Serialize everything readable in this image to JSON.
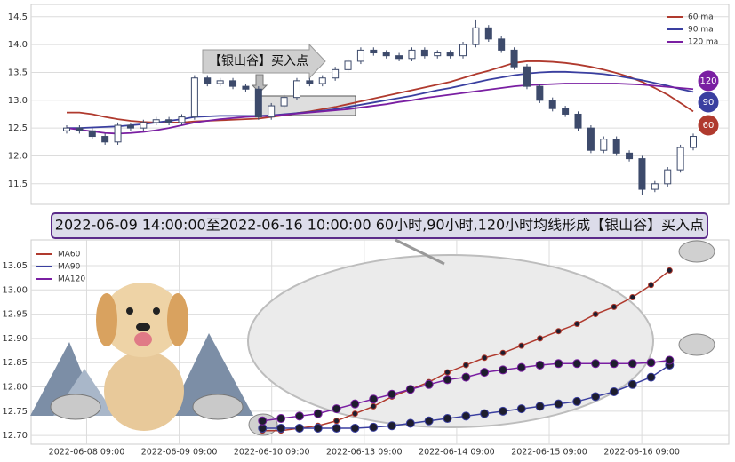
{
  "chart_data": [
    {
      "type": "candlestick",
      "annotation": "【银山谷】买入点",
      "end_labels": [
        "120",
        "90",
        "60"
      ],
      "open": [
        12.45,
        12.5,
        12.45,
        12.35,
        12.25,
        12.55,
        12.5,
        12.6,
        12.65,
        12.6,
        12.7,
        13.4,
        13.3,
        13.35,
        13.25,
        13.2,
        12.7,
        12.9,
        13.05,
        13.35,
        13.3,
        13.4,
        13.55,
        13.7,
        13.9,
        13.85,
        13.8,
        13.75,
        13.9,
        13.8,
        13.85,
        13.8,
        14.0,
        14.3,
        14.1,
        13.9,
        13.6,
        13.25,
        13.0,
        12.85,
        12.75,
        12.5,
        12.1,
        12.3,
        12.05,
        11.95,
        11.4,
        11.5,
        11.75,
        12.15
      ],
      "close": [
        12.5,
        12.45,
        12.35,
        12.25,
        12.55,
        12.5,
        12.6,
        12.65,
        12.6,
        12.7,
        13.4,
        13.3,
        13.35,
        13.25,
        13.2,
        12.7,
        12.9,
        13.05,
        13.35,
        13.3,
        13.4,
        13.55,
        13.7,
        13.9,
        13.85,
        13.8,
        13.75,
        13.9,
        13.8,
        13.85,
        13.8,
        14.0,
        14.3,
        14.1,
        13.9,
        13.6,
        13.25,
        13.0,
        12.85,
        12.75,
        12.5,
        12.1,
        12.3,
        12.05,
        11.95,
        11.4,
        11.5,
        11.75,
        12.15,
        12.35
      ],
      "high": [
        12.55,
        12.55,
        12.5,
        12.4,
        12.6,
        12.6,
        12.65,
        12.7,
        12.7,
        12.75,
        13.45,
        13.45,
        13.4,
        13.4,
        13.3,
        13.25,
        12.95,
        13.1,
        13.4,
        13.4,
        13.45,
        13.6,
        13.75,
        13.95,
        13.95,
        13.9,
        13.85,
        13.95,
        13.95,
        13.9,
        13.9,
        14.05,
        14.45,
        14.35,
        14.15,
        13.95,
        13.65,
        13.3,
        13.05,
        12.9,
        12.8,
        12.55,
        12.35,
        12.35,
        12.1,
        12.0,
        11.55,
        11.8,
        12.2,
        12.4
      ],
      "low": [
        12.4,
        12.4,
        12.3,
        12.2,
        12.2,
        12.45,
        12.45,
        12.55,
        12.55,
        12.55,
        12.65,
        13.25,
        13.25,
        13.2,
        13.15,
        12.65,
        12.65,
        12.85,
        13.0,
        13.25,
        13.25,
        13.35,
        13.5,
        13.65,
        13.8,
        13.75,
        13.7,
        13.7,
        13.75,
        13.75,
        13.75,
        13.75,
        13.95,
        14.05,
        13.85,
        13.55,
        13.2,
        12.95,
        12.8,
        12.7,
        12.45,
        12.05,
        12.05,
        12.0,
        11.9,
        11.3,
        11.35,
        11.45,
        11.7,
        12.1
      ],
      "candle_color": "#3d4a6b",
      "series": [
        {
          "name": "60 ma",
          "color": "#b03a2e",
          "values": [
            12.78,
            12.78,
            12.75,
            12.7,
            12.66,
            12.63,
            12.61,
            12.6,
            12.6,
            12.6,
            12.62,
            12.63,
            12.64,
            12.65,
            12.66,
            12.67,
            12.7,
            12.73,
            12.77,
            12.8,
            12.84,
            12.88,
            12.93,
            12.98,
            13.03,
            13.08,
            13.13,
            13.18,
            13.23,
            13.28,
            13.33,
            13.4,
            13.47,
            13.53,
            13.6,
            13.67,
            13.7,
            13.7,
            13.69,
            13.67,
            13.64,
            13.6,
            13.55,
            13.49,
            13.42,
            13.33,
            13.22,
            13.1,
            12.95,
            12.8
          ]
        },
        {
          "name": "90 ma",
          "color": "#3a3fa0",
          "values": [
            12.5,
            12.5,
            12.51,
            12.52,
            12.53,
            12.55,
            12.57,
            12.6,
            12.63,
            12.66,
            12.7,
            12.71,
            12.72,
            12.72,
            12.72,
            12.72,
            12.73,
            12.75,
            12.77,
            12.79,
            12.81,
            12.84,
            12.88,
            12.92,
            12.96,
            13.0,
            13.04,
            13.08,
            13.13,
            13.18,
            13.22,
            13.27,
            13.32,
            13.37,
            13.41,
            13.45,
            13.48,
            13.5,
            13.51,
            13.51,
            13.5,
            13.49,
            13.47,
            13.44,
            13.4,
            13.36,
            13.31,
            13.26,
            13.2,
            13.15
          ]
        },
        {
          "name": "120 ma",
          "color": "#7a1fa2",
          "values": [
            12.5,
            12.47,
            12.44,
            12.41,
            12.4,
            12.41,
            12.43,
            12.46,
            12.5,
            12.55,
            12.6,
            12.63,
            12.66,
            12.68,
            12.7,
            12.71,
            12.72,
            12.74,
            12.76,
            12.78,
            12.8,
            12.82,
            12.84,
            12.87,
            12.9,
            12.93,
            12.97,
            13.0,
            13.04,
            13.07,
            13.1,
            13.13,
            13.16,
            13.19,
            13.22,
            13.25,
            13.27,
            13.28,
            13.29,
            13.3,
            13.3,
            13.3,
            13.3,
            13.3,
            13.29,
            13.28,
            13.26,
            13.24,
            13.22,
            13.2
          ]
        }
      ],
      "ylim": [
        11.13,
        14.72
      ],
      "yticks": [
        11.5,
        {
          "value": 12,
          "label": "12.0"
        },
        12.5,
        {
          "value": 13,
          "label": "13.0"
        },
        13.5,
        {
          "value": 14,
          "label": "14.0"
        },
        14.5
      ],
      "grid": true,
      "legend": "upper right"
    },
    {
      "type": "line",
      "title": "2022-06-09 14:00:00至2022-06-16 10:00:00 60小时,90小时,120小时均线形成【银山谷】买入点",
      "x": [
        12.5,
        13.5,
        14.5,
        15.5,
        16.5,
        17.5,
        18.5,
        19.5,
        20.5,
        21.5,
        22.5,
        23.5,
        24.5,
        25.5,
        26.5,
        27.5,
        28.5,
        29.5,
        30.5,
        31.5,
        32.5,
        33.5,
        34.5
      ],
      "series": [
        {
          "name": "MA60",
          "color": "#b03a2e",
          "values": [
            12.71,
            12.71,
            12.715,
            12.72,
            12.73,
            12.745,
            12.76,
            12.78,
            12.795,
            12.81,
            12.83,
            12.845,
            12.86,
            12.87,
            12.885,
            12.9,
            12.915,
            12.93,
            12.95,
            12.965,
            12.985,
            13.01,
            13.04
          ]
        },
        {
          "name": "MA90",
          "color": "#3a3fa0",
          "values": [
            12.715,
            12.715,
            12.715,
            12.715,
            12.715,
            12.715,
            12.717,
            12.72,
            12.725,
            12.73,
            12.735,
            12.74,
            12.745,
            12.75,
            12.755,
            12.76,
            12.765,
            12.77,
            12.78,
            12.79,
            12.805,
            12.82,
            12.845
          ]
        },
        {
          "name": "MA120",
          "color": "#7a1fa2",
          "values": [
            12.73,
            12.735,
            12.74,
            12.745,
            12.755,
            12.765,
            12.775,
            12.785,
            12.795,
            12.805,
            12.815,
            12.82,
            12.83,
            12.835,
            12.84,
            12.845,
            12.848,
            12.848,
            12.848,
            12.848,
            12.848,
            12.85,
            12.855
          ]
        }
      ],
      "xlim": [
        0,
        37.7
      ],
      "xticks": [
        {
          "value": 3,
          "label": "2022-06-08 09:00"
        },
        {
          "value": 8,
          "label": "2022-06-09 09:00"
        },
        {
          "value": 13,
          "label": "2022-06-10 09:00"
        },
        {
          "value": 18,
          "label": "2022-06-13 09:00"
        },
        {
          "value": 23,
          "label": "2022-06-14 09:00"
        },
        {
          "value": 28,
          "label": "2022-06-15 09:00"
        },
        {
          "value": 33,
          "label": "2022-06-16 09:00"
        }
      ],
      "ylim": [
        12.682,
        13.103
      ],
      "yticks": [
        {
          "value": 12.7,
          "label": "12.70"
        },
        {
          "value": 12.75,
          "label": "12.75"
        },
        {
          "value": 12.8,
          "label": "12.80"
        },
        {
          "value": 12.85,
          "label": "12.85"
        },
        {
          "value": 12.9,
          "label": "12.90"
        },
        {
          "value": 12.95,
          "label": "12.95"
        },
        {
          "value": 13,
          "label": "13.00"
        },
        {
          "value": 13.05,
          "label": "13.05"
        }
      ],
      "grid": true,
      "legend": "upper left"
    }
  ]
}
